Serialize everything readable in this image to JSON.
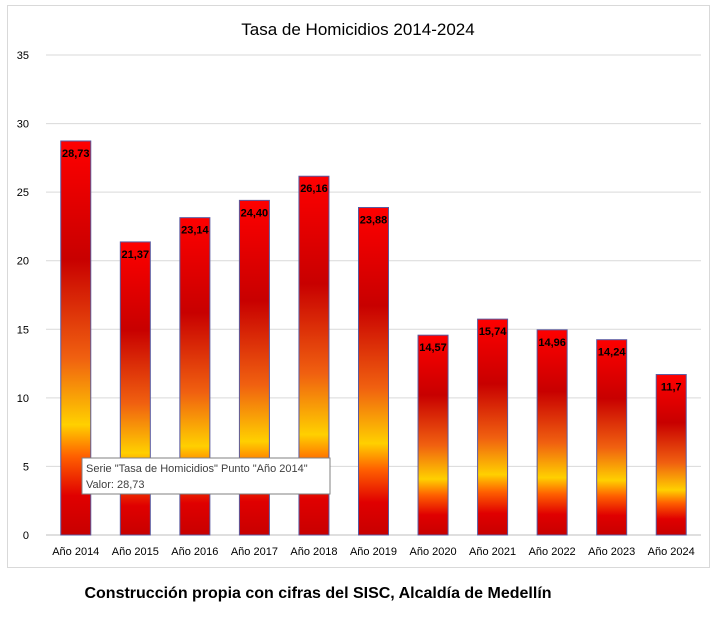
{
  "chart_data": {
    "type": "bar",
    "title": "Tasa de Homicidios 2014-2024",
    "series_name": "Tasa de Homicidios",
    "categories": [
      "Año 2014",
      "Año 2015",
      "Año 2016",
      "Año 2017",
      "Año 2018",
      "Año 2019",
      "Año 2020",
      "Año 2021",
      "Año 2022",
      "Año 2023",
      "Año 2024"
    ],
    "values": [
      28.73,
      21.37,
      23.14,
      24.4,
      26.16,
      23.88,
      14.57,
      15.74,
      14.96,
      14.24,
      11.7
    ],
    "data_labels": [
      "28,73",
      "21,37",
      "23,14",
      "24,40",
      "26,16",
      "23,88",
      "14,57",
      "15,74",
      "14,96",
      "14,24",
      "11,7"
    ],
    "ylim": [
      0,
      35
    ],
    "yticks": [
      0,
      5,
      10,
      15,
      20,
      25,
      30,
      35
    ],
    "grid": true,
    "legend": "none"
  },
  "tooltip": {
    "line1": "Serie \"Tasa de Homicidios\" Punto \"Año 2014\"",
    "line2": "Valor: 28,73"
  },
  "caption": "Construcción propia con cifras del SISC, Alcaldía de Medellín",
  "colors": {
    "bar_red": "#e00000",
    "bar_dark": "#b00000",
    "bar_yellow": "#ffd000",
    "bar_border": "#5a5aa0",
    "grid": "#d9d9d9"
  }
}
